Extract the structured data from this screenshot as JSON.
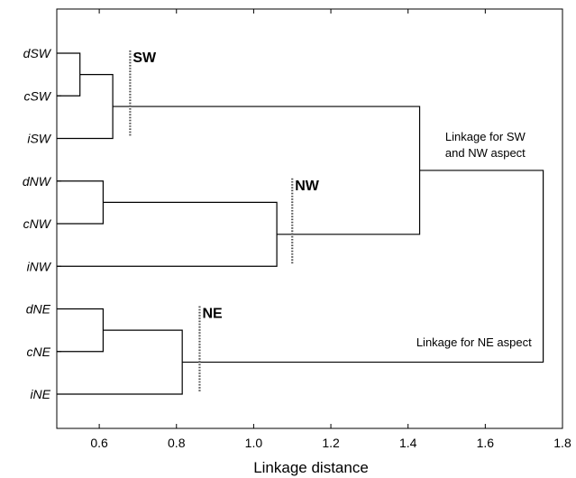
{
  "chart_data": {
    "type": "dendrogram",
    "xlabel": "Linkage distance",
    "xlim": [
      0.49,
      1.8
    ],
    "xticks": [
      "0.6",
      "0.8",
      "1.0",
      "1.2",
      "1.4",
      "1.6",
      "1.8"
    ],
    "xtick_values": [
      0.6,
      0.8,
      1.0,
      1.2,
      1.4,
      1.6,
      1.8
    ],
    "leaves": [
      "dSW",
      "cSW",
      "iSW",
      "dNW",
      "cNW",
      "iNW",
      "dNE",
      "cNE",
      "iNE"
    ],
    "merges": [
      {
        "id": "m1",
        "left": "dSW",
        "right": "cSW",
        "distance": 0.55
      },
      {
        "id": "m2",
        "left": "m1",
        "right": "iSW",
        "distance": 0.635
      },
      {
        "id": "m3",
        "left": "dNW",
        "right": "cNW",
        "distance": 0.61
      },
      {
        "id": "m4",
        "left": "m3",
        "right": "iNW",
        "distance": 1.06
      },
      {
        "id": "m5",
        "left": "dNE",
        "right": "cNE",
        "distance": 0.61
      },
      {
        "id": "m6",
        "left": "m5",
        "right": "iNE",
        "distance": 0.815
      },
      {
        "id": "m7",
        "left": "m2",
        "right": "m4",
        "distance": 1.43
      },
      {
        "id": "m8",
        "left": "m7",
        "right": "m6",
        "distance": 1.75
      }
    ],
    "cut_lines": [
      {
        "label": "SW",
        "distance": 0.68,
        "from_leaf": 0,
        "to_leaf": 2
      },
      {
        "label": "NW",
        "distance": 1.1,
        "from_leaf": 3,
        "to_leaf": 5
      },
      {
        "label": "NE",
        "distance": 0.86,
        "from_leaf": 6,
        "to_leaf": 8
      }
    ],
    "annotations": [
      {
        "lines": [
          "Linkage for SW",
          "and NW aspect"
        ],
        "merge": "m7"
      },
      {
        "lines": [
          "Linkage for NE aspect"
        ],
        "merge": "m8"
      }
    ]
  }
}
